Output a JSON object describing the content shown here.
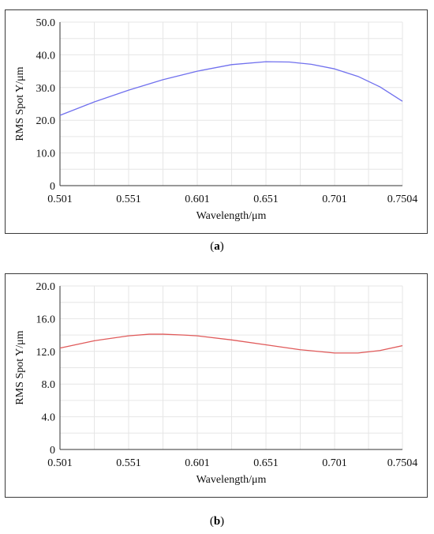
{
  "chart_data": [
    {
      "type": "line",
      "panel_label": "a",
      "xlabel": "Wavelength/μm",
      "ylabel": "RMS Spot Y/μm",
      "x_ticks": [
        "0.501",
        "0.551",
        "0.601",
        "0.651",
        "0.701",
        "0.7504"
      ],
      "x_tick_values": [
        0.501,
        0.551,
        0.601,
        0.651,
        0.701,
        0.7504
      ],
      "y_ticks": [
        "0",
        "10.0",
        "20.0",
        "30.0",
        "40.0",
        "50.0"
      ],
      "y_tick_values": [
        0,
        10,
        20,
        30,
        40,
        50
      ],
      "xlim": [
        0.501,
        0.7504
      ],
      "ylim": [
        0,
        50
      ],
      "grid": true,
      "series": [
        {
          "color": "#7070ee",
          "x": [
            0.501,
            0.526,
            0.551,
            0.576,
            0.601,
            0.626,
            0.651,
            0.668,
            0.684,
            0.701,
            0.718,
            0.734,
            0.7504
          ],
          "y": [
            21.5,
            25.6,
            29.2,
            32.4,
            35.0,
            37.0,
            37.9,
            37.8,
            37.1,
            35.7,
            33.4,
            30.2,
            25.8
          ]
        }
      ]
    },
    {
      "type": "line",
      "panel_label": "b",
      "xlabel": "Wavelength/μm",
      "ylabel": "RMS Spot Y/μm",
      "x_ticks": [
        "0.501",
        "0.551",
        "0.601",
        "0.651",
        "0.701",
        "0.7504"
      ],
      "x_tick_values": [
        0.501,
        0.551,
        0.601,
        0.651,
        0.701,
        0.7504
      ],
      "y_ticks": [
        "0",
        "4.0",
        "8.0",
        "12.0",
        "16.0",
        "20.0"
      ],
      "y_tick_values": [
        0,
        4,
        8,
        12,
        16,
        20
      ],
      "xlim": [
        0.501,
        0.7504
      ],
      "ylim": [
        0,
        20
      ],
      "grid": true,
      "series": [
        {
          "color": "#e05a5a",
          "x": [
            0.501,
            0.526,
            0.551,
            0.566,
            0.576,
            0.591,
            0.601,
            0.626,
            0.651,
            0.676,
            0.701,
            0.718,
            0.734,
            0.7504
          ],
          "y": [
            12.4,
            13.3,
            13.9,
            14.1,
            14.1,
            14.0,
            13.9,
            13.4,
            12.8,
            12.2,
            11.8,
            11.8,
            12.1,
            12.7
          ]
        }
      ]
    }
  ],
  "captions": {
    "a_open": "(",
    "a_label": "a",
    "a_close": ")",
    "b_open": "(",
    "b_label": "b",
    "b_close": ")"
  }
}
